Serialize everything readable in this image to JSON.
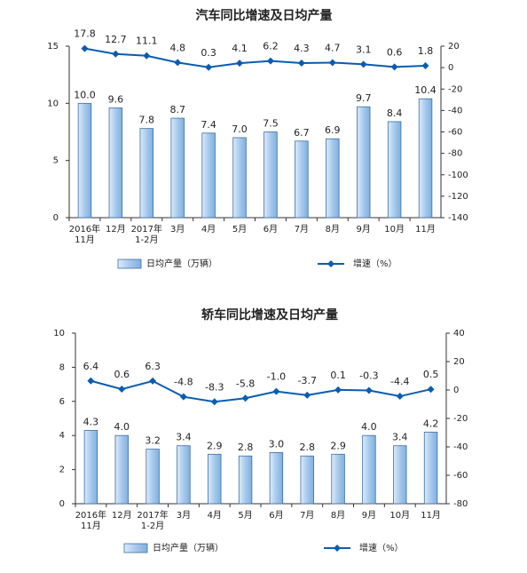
{
  "chart_data": [
    {
      "type": "bar-line",
      "title": "汽车同比增速及日均产量",
      "categories": [
        "2016年\n11月",
        "12月",
        "2017年\n1-2月",
        "3月",
        "4月",
        "5月",
        "6月",
        "7月",
        "8月",
        "9月",
        "10月",
        "11月"
      ],
      "ylim": [
        0,
        15
      ],
      "yticks": [
        0,
        5,
        10,
        15
      ],
      "y2lim": [
        -140,
        20
      ],
      "y2ticks": [
        20,
        0,
        -20,
        -40,
        -60,
        -80,
        -100,
        -120,
        -140
      ],
      "series": [
        {
          "name": "日均产量（万辆）",
          "type": "bar",
          "color": "#a7c9ec",
          "values": [
            10.0,
            9.6,
            7.8,
            8.7,
            7.4,
            7.0,
            7.5,
            6.7,
            6.9,
            9.7,
            8.4,
            10.4
          ],
          "value_labels": [
            "10.0",
            "9.6",
            "7.8",
            "8.7",
            "7.4",
            "7.0",
            "7.5",
            "6.7",
            "6.9",
            "9.7",
            "8.4",
            "10.4"
          ]
        },
        {
          "name": "增速（%）",
          "type": "line",
          "axis": "y2",
          "color": "#0a5cb0",
          "values": [
            17.8,
            12.7,
            11.1,
            4.8,
            0.3,
            4.1,
            6.2,
            4.3,
            4.7,
            3.1,
            0.6,
            1.8
          ]
        }
      ]
    },
    {
      "type": "bar-line",
      "title": "轿车同比增速及日均产量",
      "categories": [
        "2016年\n11月",
        "12月",
        "2017年\n1-2月",
        "3月",
        "4月",
        "5月",
        "6月",
        "7月",
        "8月",
        "9月",
        "10月",
        "11月"
      ],
      "ylim": [
        0,
        10
      ],
      "yticks": [
        0,
        2,
        4,
        6,
        8,
        10
      ],
      "y2lim": [
        -80,
        40
      ],
      "y2ticks": [
        40,
        20,
        0,
        -20,
        -40,
        -60,
        -80
      ],
      "series": [
        {
          "name": "日均产量（万辆）",
          "type": "bar",
          "color": "#a7c9ec",
          "values": [
            4.3,
            4.0,
            3.2,
            3.4,
            2.9,
            2.8,
            3.0,
            2.8,
            2.9,
            4.0,
            3.4,
            4.2
          ],
          "value_labels": [
            "4.3",
            "4.0",
            "3.2",
            "3.4",
            "2.9",
            "2.8",
            "3.0",
            "2.8",
            "2.9",
            "4.0",
            "3.4",
            "4.2"
          ]
        },
        {
          "name": "增速（%）",
          "type": "line",
          "axis": "y2",
          "color": "#0a5cb0",
          "values": [
            6.4,
            0.6,
            6.3,
            -4.8,
            -8.3,
            -5.8,
            -1.0,
            -3.7,
            0.1,
            -0.3,
            -4.4,
            0.5
          ],
          "value_labels": [
            "6.4",
            "0.6",
            "6.3",
            "-4.8",
            "-8.3",
            "-5.8",
            "-1.0",
            "-3.7",
            "0.1",
            "-0.3",
            "-4.4",
            "0.5"
          ]
        }
      ]
    }
  ]
}
